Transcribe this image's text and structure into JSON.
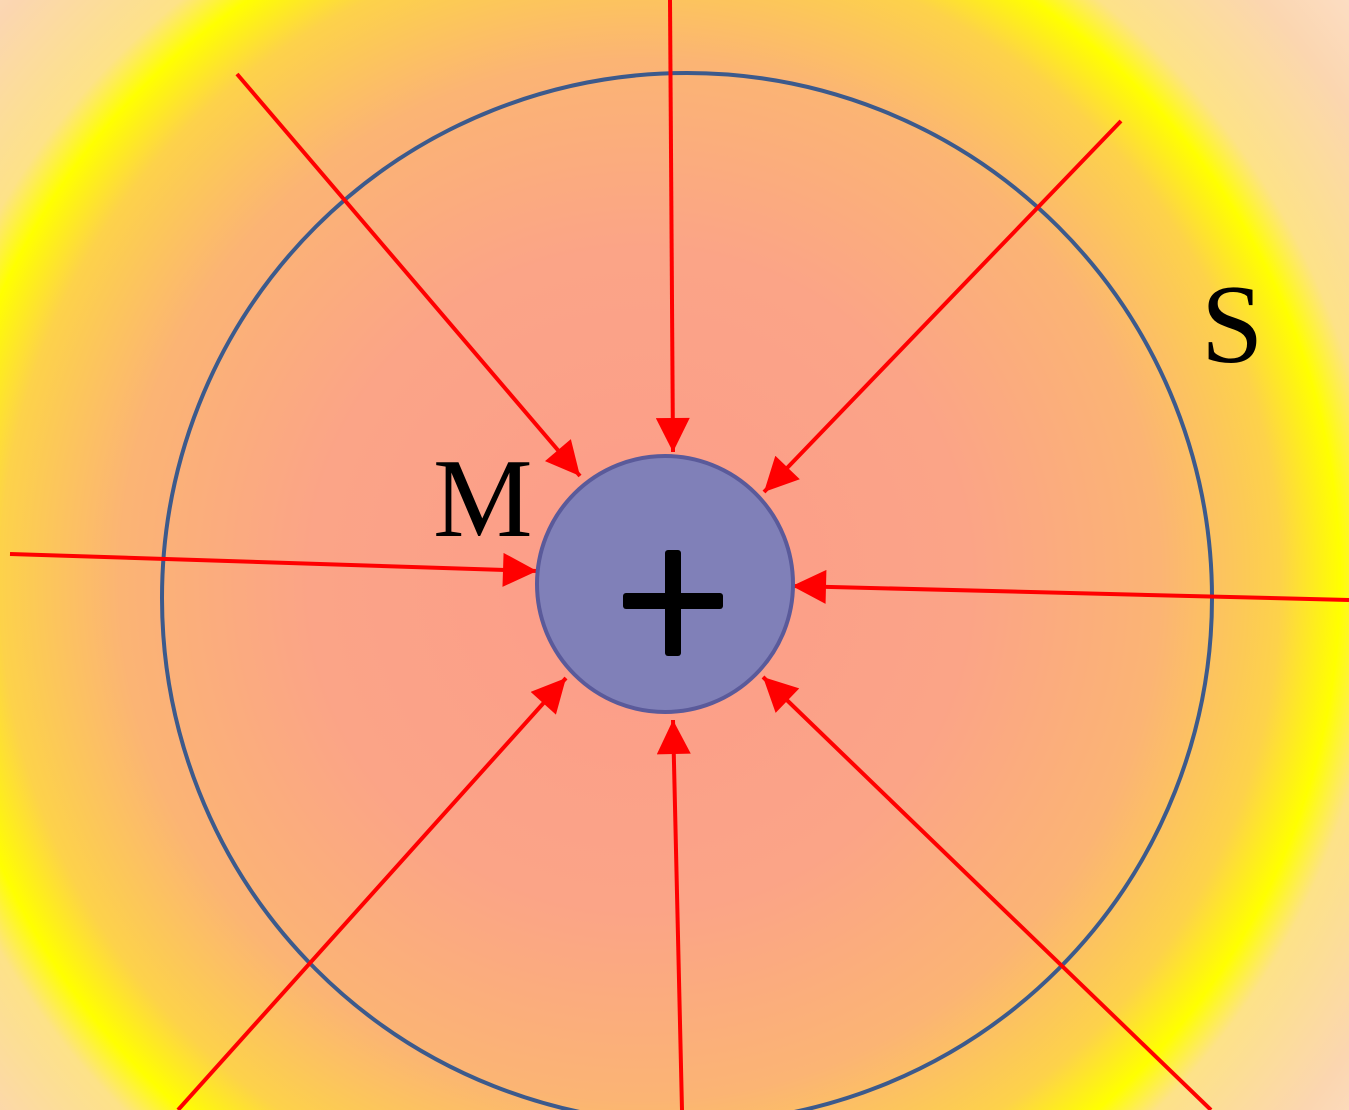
{
  "diagram": {
    "sphere_label": "S",
    "charge_label": "M",
    "charge_sign": "+",
    "colors": {
      "field_line": "#ff0000",
      "sphere_outline": "#3c5a8c",
      "charge_fill": "#8080b8",
      "charge_outline": "#5a5a9a",
      "sign": "#000000"
    }
  }
}
